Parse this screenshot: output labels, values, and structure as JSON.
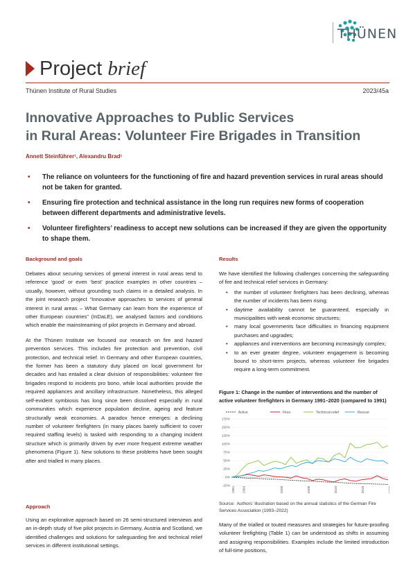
{
  "header": {
    "logo_text": "THÜNEN",
    "brief_word1": "Project",
    "brief_word2": "brief",
    "institute": "Thünen Institute of Rural Studies",
    "number": "2023/45a"
  },
  "title_line1": "Innovative Approaches to Public Services",
  "title_line2": "in Rural Areas: Volunteer Fire Brigades in Transition",
  "authors": "Annett Steinführer¹, Alexandru Brad¹",
  "key_points": [
    "The reliance on volunteers for the functioning of fire and hazard prevention services in rural areas should not be taken for granted.",
    "Ensuring fire protection and technical assistance in the long run requires new forms of cooperation between different departments and administrative levels.",
    "Volunteer firefighters’ readiness to accept new solutions can be increased if they are given the opportunity to shape them."
  ],
  "background": {
    "heading": "Background and goals",
    "p1": "Debates about securing services of general interest in rural areas tend to reference ‘good’ or even ‘best’ practice examples in other countries – usually, however, without grounding such claims in a detailed analysis. In the joint research project “Innovative approaches to services of general interest in rural areas – What Germany can learn from the experience of other European countries” (InDaLE), we analysed factors and conditions which enable the mainstreaming of pilot projects in Germany and abroad.",
    "p2": "At the Thünen Institute we focused our research on fire and hazard prevention services. This includes fire protection and prevention, civil protection, and technical relief. In Germany and other European countries, the former has been a statutory duty placed on local government for decades and has entailed a clear division of responsibilities: volunteer fire brigades respond to incidents pro bono, while local authorities provide the required appliances and ancillary infrastructure. Nonetheless, this alleged self-evident symbiosis has long since been dissolved especially in rural communities which experience population decline, ageing and feature structurally weak economies. A paradox hence emerges: a declining number of volunteer firefighters (in many places barely sufficient to cover required staffing levels) is tasked with responding to a changing incident structure which is primarily driven by ever more frequent extreme weather phenomena (Figure 1). New solutions to these problems have been sought after and trialled in many places."
  },
  "approach": {
    "heading": "Approach",
    "p1": "Using an explorative approach based on 26 semi-structured interviews and an in-depth study of five pilot projects in Germany, Austria and Scotland, we identified challenges and solutions for safeguarding fire and technical relief services in different institutional settings."
  },
  "results": {
    "heading": "Results",
    "intro": "We have identified the following challenges concerning the safeguarding of fire and technical relief services in Germany:",
    "items": [
      "the number of volunteer firefighters has been declining, whereas the number of incidents has been rising;",
      "daytime availability cannot be guaranteed, especially in municipalities with weak economic structures;",
      "many local governments face difficulties in financing equipment purchases and upgrades;",
      "appliances and interventions are becoming increasingly complex;",
      "to an ever greater degree, volunteer engagement is becoming bound to short-term projects, whereas volunteer fire brigades require a long-term commitment."
    ],
    "after": "Many of the trialled or touted measures and strategies for future-proofing volunteer firefighting (Table 1) can be understood as shifts in assuming and assigning responsibilities. Examples include the limited introduction of full-time positions,"
  },
  "figure": {
    "caption": "Figure 1: Change in the number of interventions and the number of active volunteer firefighters in Germany 1991–2020 (compared to 1991)",
    "source_label": "Source:",
    "source_text": "Authors’ illustration based on the annual statistics of the German Fire Services Association (1993–2022)"
  },
  "chart_data": {
    "type": "line",
    "legend": [
      "Active",
      "Fires",
      "Technical relief",
      "Rescue"
    ],
    "colors": {
      "Active": "#444444",
      "Fires": "#d0202a",
      "Technical relief": "#8cc63f",
      "Rescue": "#29a9e1"
    },
    "y_ticks": [
      "175%",
      "150%",
      "125%",
      "100%",
      "75%",
      "50%",
      "25%",
      "0%",
      "-25%"
    ],
    "ylim": [
      -25,
      175
    ],
    "x_ticks": [
      "1991",
      "1993",
      "2000",
      "2005",
      "2010",
      "2015",
      "2020"
    ],
    "x": [
      1991,
      1992,
      1993,
      1994,
      1995,
      1996,
      1997,
      1998,
      1999,
      2000,
      2001,
      2002,
      2003,
      2004,
      2005,
      2006,
      2007,
      2008,
      2009,
      2010,
      2011,
      2012,
      2013,
      2014,
      2015,
      2016,
      2017,
      2018,
      2019,
      2020
    ],
    "series": [
      {
        "name": "Active",
        "values": [
          0,
          -1,
          -2,
          -3,
          -3,
          -4,
          -5,
          -6,
          -6,
          -7,
          -8,
          -9,
          -10,
          -11,
          -11,
          -12,
          -13,
          -14,
          -15,
          -15,
          -16,
          -17,
          -18,
          -19,
          -19,
          -20,
          -20,
          -21,
          -21,
          -22
        ]
      },
      {
        "name": "Fires",
        "values": [
          0,
          2,
          5,
          8,
          6,
          3,
          7,
          5,
          2,
          1,
          0,
          -3,
          4,
          -2,
          -4,
          -10,
          -6,
          -8,
          -12,
          -14,
          -8,
          -5,
          -10,
          -12,
          -8,
          -6,
          -4,
          5,
          -4,
          -8
        ]
      },
      {
        "name": "Technical relief",
        "values": [
          0,
          5,
          25,
          40,
          45,
          50,
          35,
          42,
          48,
          45,
          38,
          60,
          42,
          48,
          52,
          40,
          58,
          55,
          45,
          65,
          72,
          58,
          102,
          88,
          90,
          98,
          100,
          105,
          88,
          95
        ]
      },
      {
        "name": "Rescue",
        "values": [
          0,
          2,
          5,
          10,
          14,
          20,
          18,
          22,
          28,
          25,
          30,
          35,
          32,
          40,
          45,
          42,
          50,
          48,
          46,
          55,
          52,
          46,
          60,
          50,
          45,
          55,
          52,
          48,
          50,
          40
        ]
      }
    ]
  }
}
